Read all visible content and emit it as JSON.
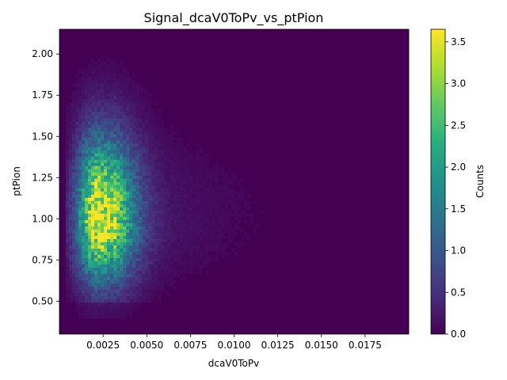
{
  "chart_data": {
    "type": "heatmap",
    "title": "Signal_dcaV0ToPv_vs_ptPion",
    "xlabel": "dcaV0ToPv",
    "ylabel": "ptPion",
    "colorbar_label": "Counts",
    "colormap": "viridis",
    "xlim": [
      0.0,
      0.02
    ],
    "ylim": [
      0.3,
      2.15
    ],
    "clim": [
      0.0,
      3.65
    ],
    "x_ticks": [
      0.0025,
      0.005,
      0.0075,
      0.01,
      0.0125,
      0.015,
      0.0175
    ],
    "x_tick_labels": [
      "0.0025",
      "0.0050",
      "0.0075",
      "0.0100",
      "0.0125",
      "0.0150",
      "0.0175"
    ],
    "y_ticks": [
      0.5,
      0.75,
      1.0,
      1.25,
      1.5,
      1.75,
      2.0
    ],
    "y_tick_labels": [
      "0.50",
      "0.75",
      "1.00",
      "1.25",
      "1.50",
      "1.75",
      "2.00"
    ],
    "colorbar_ticks": [
      0.0,
      0.5,
      1.0,
      1.5,
      2.0,
      2.5,
      3.0,
      3.5
    ],
    "colorbar_tick_labels": [
      "0.0",
      "0.5",
      "1.0",
      "1.5",
      "2.0",
      "2.5",
      "3.0",
      "3.5"
    ],
    "distribution": {
      "peak_x": 0.0022,
      "peak_y": 1.0,
      "peak_counts": 3.6,
      "x_extent_of_bright_region": [
        0.001,
        0.0038
      ],
      "y_extent_of_bright_region": [
        0.5,
        1.75
      ],
      "tail_x_max": 0.015
    },
    "grid": false,
    "legend": "colorbar-right"
  }
}
